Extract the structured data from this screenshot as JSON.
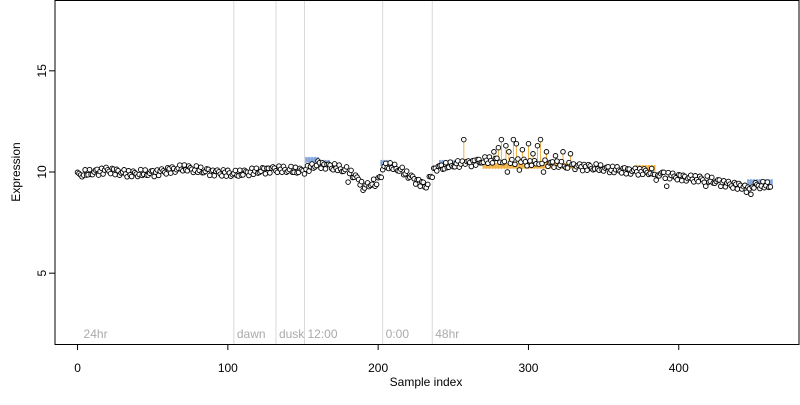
{
  "chart_data": {
    "type": "scatter",
    "xlabel": "Sample index",
    "ylabel": "Expression",
    "xlim": [
      -15,
      480
    ],
    "ylim": [
      1.5,
      18.5
    ],
    "x_ticks": [
      0,
      100,
      200,
      300,
      400
    ],
    "y_ticks": [
      5,
      10,
      15
    ],
    "grid": false,
    "point_count": 462,
    "colors": {
      "point_fill": "#ffffff",
      "point_stroke": "#000000",
      "vline": "#d9d9d9",
      "annotation_text": "#aaaaaa",
      "blue_segment": "#7fa2d8",
      "orange_segment": "#f0b040",
      "axis": "#000000"
    },
    "annotations": [
      {
        "x": 2,
        "label": "24hr",
        "line": false
      },
      {
        "x": 104,
        "label": "dawn",
        "line": true
      },
      {
        "x": 132,
        "label": "dusk",
        "line": true
      },
      {
        "x": 151,
        "label": "12:00",
        "line": true
      },
      {
        "x": 203,
        "label": "0:00",
        "line": true
      },
      {
        "x": 236,
        "label": "48hr",
        "line": true
      }
    ],
    "baseline_anchors": [
      [
        0,
        9.85
      ],
      [
        20,
        10.1
      ],
      [
        35,
        9.9
      ],
      [
        50,
        9.95
      ],
      [
        70,
        10.2
      ],
      [
        90,
        10.0
      ],
      [
        105,
        9.9
      ],
      [
        130,
        10.15
      ],
      [
        150,
        10.05
      ],
      [
        160,
        10.4
      ],
      [
        170,
        10.25
      ],
      [
        180,
        10.05
      ],
      [
        192,
        9.3
      ],
      [
        200,
        9.6
      ],
      [
        205,
        10.35
      ],
      [
        215,
        10.1
      ],
      [
        225,
        9.6
      ],
      [
        232,
        9.3
      ],
      [
        238,
        10.2
      ],
      [
        255,
        10.4
      ],
      [
        275,
        10.6
      ],
      [
        300,
        10.5
      ],
      [
        330,
        10.3
      ],
      [
        360,
        10.1
      ],
      [
        380,
        10.0
      ],
      [
        400,
        9.75
      ],
      [
        420,
        9.6
      ],
      [
        440,
        9.3
      ],
      [
        462,
        9.35
      ]
    ],
    "highlight_segments": [
      {
        "color": "blue",
        "x_start": 152,
        "x_end": 160,
        "y": 10.6
      },
      {
        "color": "blue",
        "x_start": 161,
        "x_end": 168,
        "y": 10.45
      },
      {
        "color": "blue",
        "x_start": 202,
        "x_end": 208,
        "y": 10.45
      },
      {
        "color": "blue",
        "x_start": 241,
        "x_end": 256,
        "y": 10.45
      },
      {
        "color": "blue",
        "x_start": 446,
        "x_end": 462,
        "y": 9.5
      },
      {
        "color": "orange",
        "x_start": 270,
        "x_end": 336,
        "y": 10.3
      },
      {
        "color": "orange",
        "x_start": 372,
        "x_end": 384,
        "y": 10.2
      }
    ],
    "outliers": [
      {
        "x": 257,
        "y": 11.6
      },
      {
        "x": 277,
        "y": 11.0
      },
      {
        "x": 280,
        "y": 11.2
      },
      {
        "x": 282,
        "y": 11.6
      },
      {
        "x": 285,
        "y": 11.3
      },
      {
        "x": 287,
        "y": 11.0
      },
      {
        "x": 290,
        "y": 11.6
      },
      {
        "x": 292,
        "y": 11.4
      },
      {
        "x": 296,
        "y": 11.1
      },
      {
        "x": 300,
        "y": 11.4
      },
      {
        "x": 303,
        "y": 10.9
      },
      {
        "x": 306,
        "y": 11.3
      },
      {
        "x": 308,
        "y": 11.6
      },
      {
        "x": 312,
        "y": 11.0
      },
      {
        "x": 318,
        "y": 10.8
      },
      {
        "x": 323,
        "y": 11.0
      },
      {
        "x": 328,
        "y": 10.9
      },
      {
        "x": 286,
        "y": 10.0
      },
      {
        "x": 294,
        "y": 10.1
      },
      {
        "x": 310,
        "y": 10.0
      },
      {
        "x": 326,
        "y": 10.2
      },
      {
        "x": 180,
        "y": 9.5
      },
      {
        "x": 190,
        "y": 9.1
      },
      {
        "x": 198,
        "y": 9.3
      },
      {
        "x": 228,
        "y": 9.3
      },
      {
        "x": 385,
        "y": 9.6
      },
      {
        "x": 392,
        "y": 9.3
      },
      {
        "x": 418,
        "y": 9.3
      },
      {
        "x": 445,
        "y": 9.0
      },
      {
        "x": 448,
        "y": 8.9
      }
    ]
  }
}
